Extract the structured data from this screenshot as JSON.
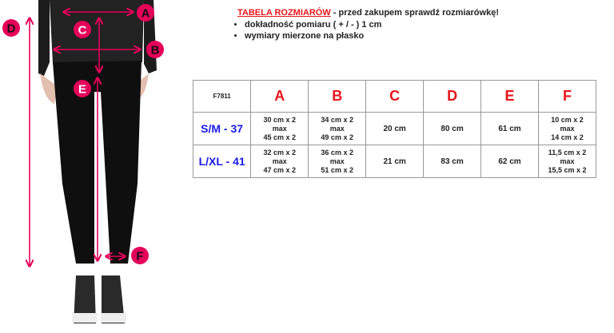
{
  "header": {
    "title": "TABELA ROZMIARÓW",
    "subtitle": " - przed zakupem sprawdź rozmiarówkę!",
    "bullets": [
      "dokładność pomiaru ( + / - ) 1 cm",
      "wymiary mierzone na płasko"
    ]
  },
  "figure": {
    "labels": [
      "A",
      "B",
      "C",
      "D",
      "E",
      "F"
    ],
    "accent_color": "#e5005a"
  },
  "table": {
    "code": "F7811",
    "columns": [
      "A",
      "B",
      "C",
      "D",
      "E",
      "F"
    ],
    "rows": [
      {
        "size": "S/M - 37",
        "cells": [
          [
            "30 cm x 2",
            "max",
            "45 cm x 2"
          ],
          [
            "34 cm x 2",
            "max",
            "49 cm x 2"
          ],
          [
            "20 cm"
          ],
          [
            "80 cm"
          ],
          [
            "61 cm"
          ],
          [
            "10 cm x 2",
            "max",
            "14 cm x 2"
          ]
        ]
      },
      {
        "size": "L/XL - 41",
        "cells": [
          [
            "32 cm x 2",
            "max",
            "47 cm x 2"
          ],
          [
            "36 cm x 2",
            "max",
            "51 cm x 2"
          ],
          [
            "21 cm"
          ],
          [
            "83 cm"
          ],
          [
            "62 cm"
          ],
          [
            "11,5 cm x 2",
            "max",
            "15,5 cm x 2"
          ]
        ]
      }
    ],
    "colors": {
      "letters": "#e8141b",
      "sizes": "#1a1ae6"
    }
  }
}
